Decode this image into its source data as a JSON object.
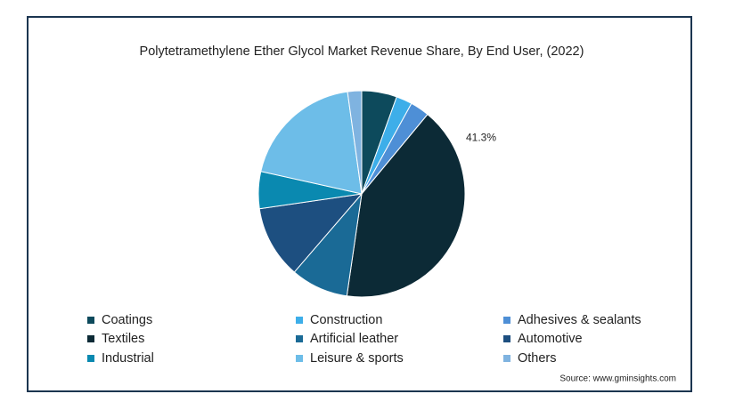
{
  "chart_data": {
    "type": "pie",
    "title": "Polytetramethylene Ether Glycol Market Revenue Share, By End User, (2022)",
    "categories": [
      "Coatings",
      "Construction",
      "Adhesives & sealants",
      "Textiles",
      "Artificial leather",
      "Automotive",
      "Industrial",
      "Leisure & sports",
      "Others"
    ],
    "values": [
      5.5,
      2.5,
      3,
      41.3,
      9,
      11.4,
      5.8,
      19.3,
      2.2
    ],
    "value_labels": [
      null,
      null,
      null,
      "41.3%",
      null,
      null,
      null,
      null,
      null
    ],
    "colors": [
      "#0d4a5c",
      "#3daee9",
      "#4e8fd6",
      "#0c2a36",
      "#1a6a96",
      "#1d4f80",
      "#0a89b0",
      "#6dbde8",
      "#7fb3e0"
    ],
    "source": "Source: www.gminsights.com"
  }
}
